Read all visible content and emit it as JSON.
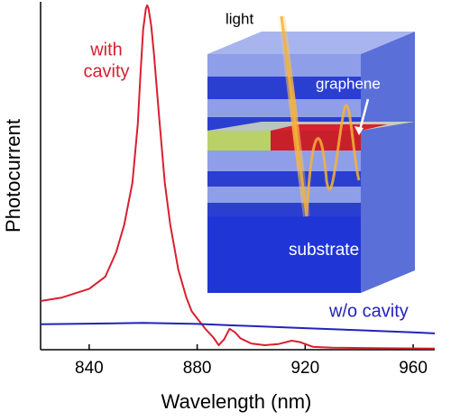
{
  "chart_data": {
    "type": "line",
    "xlabel": "Wavelength (nm)",
    "ylabel": "Photocurrent",
    "annotations": [
      "with",
      "cavity",
      "w/o cavity"
    ],
    "inset_labels": [
      "light",
      "graphene",
      "substrate"
    ],
    "xlim": [
      822,
      968
    ],
    "xticks": [
      840,
      880,
      920,
      960
    ],
    "ylim": [
      0,
      100
    ],
    "series": [
      {
        "name": "with cavity",
        "color": "#d8202f",
        "x": [
          822,
          830,
          840,
          846,
          850,
          853,
          856,
          858,
          859,
          860,
          861,
          861.5,
          862,
          863,
          864,
          866,
          868,
          870,
          873,
          876,
          878,
          881,
          883,
          886,
          888,
          890,
          892,
          894,
          896,
          900,
          905,
          910,
          915,
          918,
          923,
          930,
          941,
          955,
          968
        ],
        "values": [
          14,
          15,
          17.5,
          21,
          28,
          36,
          48,
          65,
          79,
          92,
          98,
          99,
          98,
          93,
          85,
          66,
          48,
          36,
          23,
          15,
          11,
          8,
          6,
          3.5,
          1.3,
          3,
          6,
          5,
          3.3,
          1.8,
          1.3,
          1.6,
          2.6,
          2.2,
          0.8,
          0.6,
          0.5,
          0.4,
          0.3
        ]
      },
      {
        "name": "w/o cavity",
        "color": "#2323b8",
        "x": [
          822,
          840,
          860,
          880,
          900,
          920,
          940,
          960,
          968
        ],
        "values": [
          7.3,
          7.5,
          7.7,
          7.4,
          6.8,
          6.2,
          5.6,
          5.0,
          4.7
        ]
      }
    ]
  }
}
